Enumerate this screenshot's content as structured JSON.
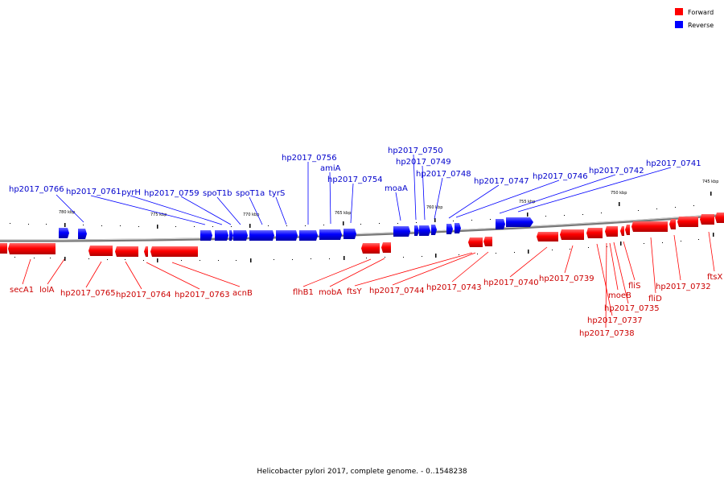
{
  "caption": "Helicobacter pylori 2017, complete genome. - 0..1548238",
  "legend": {
    "items": [
      {
        "label": "Forward",
        "color": "#ff0000"
      },
      {
        "label": "Reverse",
        "color": "#0000ff"
      }
    ]
  },
  "ticks": [
    "780 kbp",
    "775 kbp",
    "770 kbp",
    "765 kbp",
    "760 kbp",
    "755 kbp",
    "750 kbp",
    "745 kbp"
  ],
  "reverse_genes": [
    "hp2017_0766",
    "hp2017_0761",
    "pyrH",
    "hp2017_0759",
    "spoT1b",
    "spoT1a",
    "tyrS",
    "hp2017_0756",
    "amiA",
    "hp2017_0754",
    "moaA",
    "hp2017_0750",
    "hp2017_0749",
    "hp2017_0748",
    "hp2017_0747",
    "hp2017_0746",
    "hp2017_0742",
    "hp2017_0741"
  ],
  "forward_genes": [
    "secA1",
    "lolA",
    "hp2017_0765",
    "hp2017_0764",
    "hp2017_0763",
    "acnB",
    "flhB1",
    "mobA",
    "ftsY",
    "hp2017_0744",
    "hp2017_0743",
    "hp2017_0740",
    "hp2017_0739",
    "moeB",
    "hp2017_0735",
    "hp2017_0737",
    "hp2017_0738",
    "fliS",
    "fliD",
    "hp2017_0732",
    "ftsX"
  ]
}
